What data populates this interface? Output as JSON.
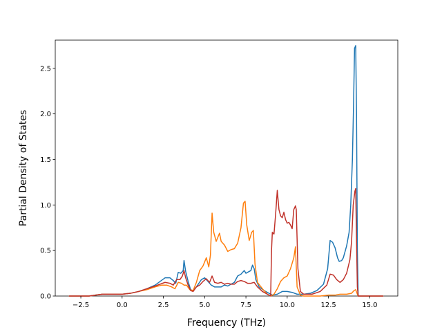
{
  "chart_data": {
    "type": "line",
    "title": "",
    "xlabel": "Frequency (THz)",
    "ylabel": "Partial Density of States",
    "xlim": [
      -4.05,
      16.7
    ],
    "ylim": [
      0,
      2.81
    ],
    "xticks": [
      -2.5,
      0.0,
      2.5,
      5.0,
      7.5,
      10.0,
      12.5,
      15.0
    ],
    "xtick_labels": [
      "−2.5",
      "0.0",
      "2.5",
      "5.0",
      "7.5",
      "10.0",
      "12.5",
      "15.0"
    ],
    "yticks": [
      0.0,
      0.5,
      1.0,
      1.5,
      2.0,
      2.5
    ],
    "ytick_labels": [
      "0.0",
      "0.5",
      "1.0",
      "1.5",
      "2.0",
      "2.5"
    ],
    "grid": false,
    "legend": "none",
    "series": [
      {
        "color": "#1f77b4",
        "points": [
          [
            -3.2,
            0.0
          ],
          [
            -2.0,
            0.0
          ],
          [
            -1.6,
            0.01
          ],
          [
            -1.2,
            0.02
          ],
          [
            -0.5,
            0.02
          ],
          [
            0.0,
            0.02
          ],
          [
            0.5,
            0.03
          ],
          [
            1.0,
            0.05
          ],
          [
            1.5,
            0.08
          ],
          [
            2.0,
            0.12
          ],
          [
            2.3,
            0.16
          ],
          [
            2.6,
            0.2
          ],
          [
            2.9,
            0.2
          ],
          [
            3.1,
            0.17
          ],
          [
            3.25,
            0.14
          ],
          [
            3.4,
            0.26
          ],
          [
            3.55,
            0.25
          ],
          [
            3.7,
            0.28
          ],
          [
            3.75,
            0.39
          ],
          [
            3.85,
            0.27
          ],
          [
            4.0,
            0.16
          ],
          [
            4.15,
            0.07
          ],
          [
            4.3,
            0.06
          ],
          [
            4.5,
            0.1
          ],
          [
            4.8,
            0.18
          ],
          [
            5.0,
            0.2
          ],
          [
            5.2,
            0.16
          ],
          [
            5.4,
            0.12
          ],
          [
            5.6,
            0.1
          ],
          [
            5.8,
            0.1
          ],
          [
            6.0,
            0.1
          ],
          [
            6.2,
            0.12
          ],
          [
            6.4,
            0.11
          ],
          [
            6.6,
            0.13
          ],
          [
            6.8,
            0.15
          ],
          [
            7.0,
            0.22
          ],
          [
            7.2,
            0.24
          ],
          [
            7.4,
            0.28
          ],
          [
            7.5,
            0.25
          ],
          [
            7.7,
            0.27
          ],
          [
            7.8,
            0.28
          ],
          [
            7.9,
            0.34
          ],
          [
            8.0,
            0.3
          ],
          [
            8.1,
            0.18
          ],
          [
            8.3,
            0.1
          ],
          [
            8.6,
            0.06
          ],
          [
            8.9,
            0.03
          ],
          [
            9.1,
            0.01
          ],
          [
            9.4,
            0.02
          ],
          [
            9.7,
            0.05
          ],
          [
            10.0,
            0.05
          ],
          [
            10.3,
            0.04
          ],
          [
            10.6,
            0.02
          ],
          [
            11.0,
            0.02
          ],
          [
            11.4,
            0.03
          ],
          [
            11.8,
            0.06
          ],
          [
            12.2,
            0.13
          ],
          [
            12.45,
            0.3
          ],
          [
            12.6,
            0.61
          ],
          [
            12.75,
            0.59
          ],
          [
            12.9,
            0.53
          ],
          [
            13.05,
            0.42
          ],
          [
            13.15,
            0.38
          ],
          [
            13.3,
            0.39
          ],
          [
            13.4,
            0.42
          ],
          [
            13.6,
            0.55
          ],
          [
            13.75,
            0.7
          ],
          [
            13.85,
            1.0
          ],
          [
            13.95,
            1.5
          ],
          [
            14.02,
            2.1
          ],
          [
            14.08,
            2.72
          ],
          [
            14.15,
            2.75
          ],
          [
            14.2,
            2.0
          ],
          [
            14.25,
            0.5
          ],
          [
            14.3,
            0.0
          ],
          [
            15.8,
            0.0
          ]
        ]
      },
      {
        "color": "#ff7f0e",
        "points": [
          [
            -3.2,
            0.0
          ],
          [
            -2.0,
            0.0
          ],
          [
            -1.6,
            0.01
          ],
          [
            -1.2,
            0.02
          ],
          [
            -0.5,
            0.02
          ],
          [
            0.0,
            0.02
          ],
          [
            0.5,
            0.03
          ],
          [
            1.0,
            0.05
          ],
          [
            1.5,
            0.07
          ],
          [
            2.0,
            0.1
          ],
          [
            2.4,
            0.12
          ],
          [
            2.7,
            0.12
          ],
          [
            3.0,
            0.1
          ],
          [
            3.2,
            0.08
          ],
          [
            3.4,
            0.15
          ],
          [
            3.6,
            0.14
          ],
          [
            3.75,
            0.12
          ],
          [
            3.9,
            0.12
          ],
          [
            4.1,
            0.07
          ],
          [
            4.3,
            0.06
          ],
          [
            4.5,
            0.15
          ],
          [
            4.7,
            0.28
          ],
          [
            4.9,
            0.33
          ],
          [
            5.1,
            0.42
          ],
          [
            5.25,
            0.32
          ],
          [
            5.35,
            0.45
          ],
          [
            5.45,
            0.91
          ],
          [
            5.55,
            0.7
          ],
          [
            5.7,
            0.6
          ],
          [
            5.9,
            0.69
          ],
          [
            6.0,
            0.6
          ],
          [
            6.2,
            0.56
          ],
          [
            6.4,
            0.49
          ],
          [
            6.6,
            0.51
          ],
          [
            6.8,
            0.52
          ],
          [
            7.0,
            0.58
          ],
          [
            7.2,
            0.75
          ],
          [
            7.35,
            1.02
          ],
          [
            7.45,
            1.04
          ],
          [
            7.55,
            0.78
          ],
          [
            7.7,
            0.61
          ],
          [
            7.85,
            0.7
          ],
          [
            7.95,
            0.72
          ],
          [
            8.05,
            0.35
          ],
          [
            8.2,
            0.15
          ],
          [
            8.5,
            0.08
          ],
          [
            8.8,
            0.02
          ],
          [
            9.0,
            0.0
          ],
          [
            9.2,
            0.02
          ],
          [
            9.4,
            0.08
          ],
          [
            9.6,
            0.16
          ],
          [
            9.8,
            0.2
          ],
          [
            10.0,
            0.22
          ],
          [
            10.2,
            0.3
          ],
          [
            10.4,
            0.42
          ],
          [
            10.5,
            0.54
          ],
          [
            10.6,
            0.1
          ],
          [
            10.8,
            0.01
          ],
          [
            11.0,
            0.0
          ],
          [
            12.0,
            0.0
          ],
          [
            12.5,
            0.01
          ],
          [
            12.9,
            0.01
          ],
          [
            13.2,
            0.02
          ],
          [
            13.6,
            0.02
          ],
          [
            13.9,
            0.03
          ],
          [
            14.05,
            0.06
          ],
          [
            14.15,
            0.07
          ],
          [
            14.25,
            0.02
          ],
          [
            14.3,
            0.0
          ],
          [
            15.8,
            0.0
          ]
        ]
      },
      {
        "color": "#c0322a",
        "points": [
          [
            -3.2,
            0.0
          ],
          [
            -2.0,
            0.0
          ],
          [
            -1.6,
            0.01
          ],
          [
            -1.2,
            0.02
          ],
          [
            -0.5,
            0.02
          ],
          [
            0.0,
            0.02
          ],
          [
            0.5,
            0.03
          ],
          [
            1.0,
            0.05
          ],
          [
            1.5,
            0.08
          ],
          [
            2.0,
            0.11
          ],
          [
            2.3,
            0.13
          ],
          [
            2.6,
            0.15
          ],
          [
            2.9,
            0.14
          ],
          [
            3.1,
            0.12
          ],
          [
            3.3,
            0.18
          ],
          [
            3.5,
            0.18
          ],
          [
            3.65,
            0.22
          ],
          [
            3.75,
            0.28
          ],
          [
            3.85,
            0.2
          ],
          [
            4.0,
            0.12
          ],
          [
            4.15,
            0.06
          ],
          [
            4.3,
            0.05
          ],
          [
            4.5,
            0.1
          ],
          [
            4.7,
            0.12
          ],
          [
            4.9,
            0.16
          ],
          [
            5.1,
            0.19
          ],
          [
            5.3,
            0.15
          ],
          [
            5.45,
            0.22
          ],
          [
            5.6,
            0.15
          ],
          [
            5.8,
            0.14
          ],
          [
            6.0,
            0.15
          ],
          [
            6.2,
            0.13
          ],
          [
            6.4,
            0.14
          ],
          [
            6.6,
            0.13
          ],
          [
            6.8,
            0.13
          ],
          [
            7.0,
            0.16
          ],
          [
            7.2,
            0.17
          ],
          [
            7.4,
            0.16
          ],
          [
            7.6,
            0.14
          ],
          [
            7.8,
            0.14
          ],
          [
            8.0,
            0.15
          ],
          [
            8.2,
            0.1
          ],
          [
            8.5,
            0.05
          ],
          [
            8.8,
            0.02
          ],
          [
            9.0,
            0.0
          ],
          [
            9.05,
            0.5
          ],
          [
            9.1,
            0.7
          ],
          [
            9.2,
            0.68
          ],
          [
            9.3,
            0.9
          ],
          [
            9.4,
            1.16
          ],
          [
            9.5,
            0.95
          ],
          [
            9.6,
            0.88
          ],
          [
            9.7,
            0.86
          ],
          [
            9.8,
            0.92
          ],
          [
            9.9,
            0.84
          ],
          [
            10.0,
            0.8
          ],
          [
            10.1,
            0.81
          ],
          [
            10.2,
            0.78
          ],
          [
            10.3,
            0.74
          ],
          [
            10.4,
            0.95
          ],
          [
            10.5,
            0.99
          ],
          [
            10.55,
            0.95
          ],
          [
            10.65,
            0.3
          ],
          [
            10.8,
            0.05
          ],
          [
            11.0,
            0.02
          ],
          [
            11.5,
            0.02
          ],
          [
            12.0,
            0.05
          ],
          [
            12.4,
            0.12
          ],
          [
            12.6,
            0.24
          ],
          [
            12.8,
            0.23
          ],
          [
            13.0,
            0.18
          ],
          [
            13.2,
            0.15
          ],
          [
            13.4,
            0.18
          ],
          [
            13.6,
            0.25
          ],
          [
            13.8,
            0.4
          ],
          [
            13.9,
            0.6
          ],
          [
            14.0,
            1.0
          ],
          [
            14.1,
            1.15
          ],
          [
            14.15,
            1.18
          ],
          [
            14.2,
            0.6
          ],
          [
            14.25,
            0.1
          ],
          [
            14.3,
            0.0
          ],
          [
            15.8,
            0.0
          ]
        ]
      }
    ]
  }
}
